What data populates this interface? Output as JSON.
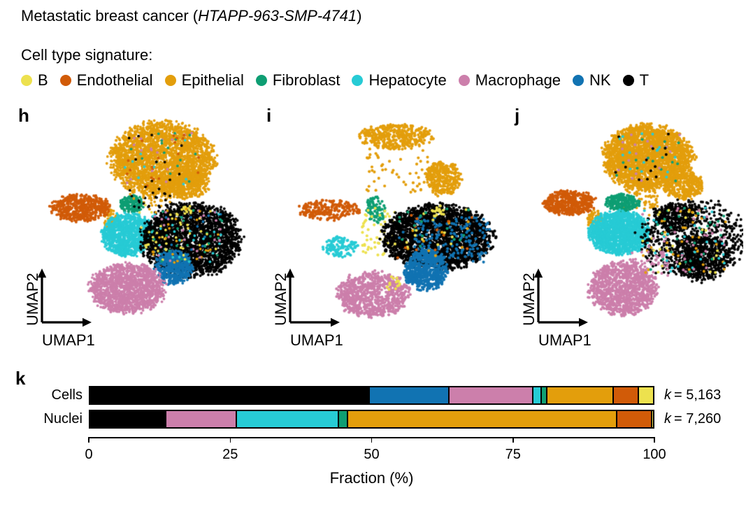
{
  "title": {
    "prefix": "Metastatic breast cancer (",
    "sample_id": "HTAPP-963-SMP-4741",
    "suffix": ")"
  },
  "legend": {
    "heading": "Cell type signature:",
    "items": [
      {
        "label": "B"
      },
      {
        "label": "Endothelial"
      },
      {
        "label": "Epithelial"
      },
      {
        "label": "Fibroblast"
      },
      {
        "label": "Hepatocyte"
      },
      {
        "label": "Macrophage"
      },
      {
        "label": "NK"
      },
      {
        "label": "T"
      }
    ]
  },
  "palette": {
    "B": "#EDE14E",
    "Endothelial": "#D15B08",
    "Epithelial": "#E39E0C",
    "Fibroblast": "#0E9E73",
    "Hepatocyte": "#27CBD5",
    "Macrophage": "#CC7FAB",
    "NK": "#1173B2",
    "T": "#000000"
  },
  "chart_data": [
    {
      "type": "scatter",
      "panel": "h",
      "xlabel": "UMAP1",
      "ylabel": "UMAP2",
      "seed": 42,
      "dot_radius_px": 1.9,
      "clusters": [
        {
          "cell_type": "Epithelial",
          "cx": 0.58,
          "cy": 0.21,
          "rx": 0.235,
          "ry": 0.175,
          "n": 2800,
          "mode": "disc"
        },
        {
          "cell_type": "Epithelial",
          "cx": 0.7,
          "cy": 0.33,
          "rx": 0.1,
          "ry": 0.07,
          "n": 350,
          "mode": "disc"
        },
        {
          "cell_type": "Epithelial",
          "cx": 0.335,
          "cy": 0.5,
          "rx": 0.03,
          "ry": 0.05,
          "n": 60,
          "mode": "disc"
        },
        {
          "mix": [
            "T",
            "Hepatocyte",
            "Fibroblast",
            "Macrophage",
            "Endothelial"
          ],
          "cx": 0.58,
          "cy": 0.21,
          "rx": 0.18,
          "ry": 0.13,
          "n": 70,
          "mode": "spread"
        },
        {
          "cell_type": "Endothelial",
          "cx": 0.19,
          "cy": 0.445,
          "rx": 0.135,
          "ry": 0.062,
          "n": 600,
          "mode": "disc"
        },
        {
          "cell_type": "Fibroblast",
          "cx": 0.43,
          "cy": 0.425,
          "rx": 0.058,
          "ry": 0.04,
          "n": 180,
          "mode": "disc"
        },
        {
          "cell_type": "Hepatocyte",
          "cx": 0.415,
          "cy": 0.575,
          "rx": 0.115,
          "ry": 0.1,
          "n": 1150,
          "mode": "disc"
        },
        {
          "cell_type": "T",
          "cx": 0.72,
          "cy": 0.6,
          "rx": 0.225,
          "ry": 0.17,
          "n": 2600,
          "mode": "disc"
        },
        {
          "cell_type": "NK",
          "cx": 0.635,
          "cy": 0.735,
          "rx": 0.088,
          "ry": 0.08,
          "n": 520,
          "mode": "disc"
        },
        {
          "cell_type": "Macrophage",
          "cx": 0.415,
          "cy": 0.835,
          "rx": 0.17,
          "ry": 0.115,
          "n": 1500,
          "mode": "disc"
        },
        {
          "mix": [
            "Epithelial",
            "T"
          ],
          "cx": 0.52,
          "cy": 0.4,
          "rx": 0.1,
          "ry": 0.06,
          "n": 50,
          "mode": "spread"
        },
        {
          "cell_type": "B",
          "cx": 0.697,
          "cy": 0.46,
          "rx": 0.03,
          "ry": 0.025,
          "n": 14,
          "mode": "disc"
        },
        {
          "cell_type": "B",
          "cx": 0.6,
          "cy": 0.55,
          "rx": 0.13,
          "ry": 0.12,
          "n": 26,
          "mode": "spread"
        },
        {
          "mix": [
            "Macrophage",
            "Epithelial",
            "Hepatocyte",
            "Fibroblast",
            "NK",
            "B"
          ],
          "cx": 0.7,
          "cy": 0.58,
          "rx": 0.17,
          "ry": 0.13,
          "n": 130,
          "mode": "spread"
        }
      ]
    },
    {
      "type": "scatter",
      "panel": "i",
      "xlabel": "UMAP1",
      "ylabel": "UMAP2",
      "seed": 7,
      "dot_radius_px": 2.1,
      "clusters": [
        {
          "cell_type": "Epithelial",
          "cx": 0.515,
          "cy": 0.1,
          "rx": 0.165,
          "ry": 0.058,
          "n": 380,
          "mode": "disc"
        },
        {
          "cell_type": "Epithelial",
          "cx": 0.735,
          "cy": 0.3,
          "rx": 0.085,
          "ry": 0.08,
          "n": 300,
          "mode": "disc"
        },
        {
          "cell_type": "Epithelial",
          "cx": 0.52,
          "cy": 0.24,
          "rx": 0.17,
          "ry": 0.13,
          "n": 60,
          "mode": "spread"
        },
        {
          "cell_type": "Endothelial",
          "cx": 0.19,
          "cy": 0.455,
          "rx": 0.145,
          "ry": 0.048,
          "n": 230,
          "mode": "disc"
        },
        {
          "cell_type": "Fibroblast",
          "cx": 0.415,
          "cy": 0.45,
          "rx": 0.045,
          "ry": 0.062,
          "n": 90,
          "mode": "disc"
        },
        {
          "cell_type": "B",
          "cx": 0.43,
          "cy": 0.56,
          "rx": 0.08,
          "ry": 0.12,
          "n": 55,
          "mode": "spread"
        },
        {
          "cell_type": "Hepatocyte",
          "cx": 0.25,
          "cy": 0.635,
          "rx": 0.08,
          "ry": 0.05,
          "n": 110,
          "mode": "disc"
        },
        {
          "cell_type": "T",
          "cx": 0.71,
          "cy": 0.585,
          "rx": 0.25,
          "ry": 0.15,
          "n": 2300,
          "mode": "disc"
        },
        {
          "cell_type": "NK",
          "cx": 0.655,
          "cy": 0.745,
          "rx": 0.1,
          "ry": 0.095,
          "n": 650,
          "mode": "disc"
        },
        {
          "cell_type": "NK",
          "cx": 0.78,
          "cy": 0.6,
          "rx": 0.18,
          "ry": 0.11,
          "n": 150,
          "mode": "spread"
        },
        {
          "cell_type": "B",
          "cx": 0.715,
          "cy": 0.465,
          "rx": 0.035,
          "ry": 0.03,
          "n": 16,
          "mode": "disc"
        },
        {
          "cell_type": "Macrophage",
          "cx": 0.4,
          "cy": 0.865,
          "rx": 0.165,
          "ry": 0.105,
          "n": 800,
          "mode": "disc"
        },
        {
          "cell_type": "B",
          "cx": 0.5,
          "cy": 0.81,
          "rx": 0.03,
          "ry": 0.05,
          "n": 14,
          "mode": "disc"
        },
        {
          "mix": [
            "B",
            "Epithelial",
            "Fibroblast",
            "NK",
            "Endothelial"
          ],
          "cx": 0.7,
          "cy": 0.57,
          "rx": 0.2,
          "ry": 0.12,
          "n": 60,
          "mode": "spread"
        }
      ]
    },
    {
      "type": "scatter",
      "panel": "j",
      "xlabel": "UMAP1",
      "ylabel": "UMAP2",
      "seed": 99,
      "dot_radius_px": 2.0,
      "clusters": [
        {
          "cell_type": "Epithelial",
          "cx": 0.555,
          "cy": 0.2,
          "rx": 0.2,
          "ry": 0.15,
          "n": 2400,
          "mode": "disc"
        },
        {
          "cell_type": "Epithelial",
          "cx": 0.72,
          "cy": 0.335,
          "rx": 0.09,
          "ry": 0.065,
          "n": 350,
          "mode": "disc"
        },
        {
          "cell_type": "Epithelial",
          "cx": 0.52,
          "cy": 0.38,
          "rx": 0.08,
          "ry": 0.07,
          "n": 80,
          "mode": "spread"
        },
        {
          "cell_type": "Epithelial",
          "cx": 0.305,
          "cy": 0.5,
          "rx": 0.035,
          "ry": 0.045,
          "n": 60,
          "mode": "disc"
        },
        {
          "mix": [
            "T",
            "Hepatocyte",
            "Macrophage",
            "Fibroblast"
          ],
          "cx": 0.555,
          "cy": 0.2,
          "rx": 0.16,
          "ry": 0.12,
          "n": 60,
          "mode": "spread"
        },
        {
          "cell_type": "Endothelial",
          "cx": 0.19,
          "cy": 0.42,
          "rx": 0.115,
          "ry": 0.057,
          "n": 500,
          "mode": "disc"
        },
        {
          "cell_type": "Fibroblast",
          "cx": 0.435,
          "cy": 0.42,
          "rx": 0.075,
          "ry": 0.04,
          "n": 230,
          "mode": "disc"
        },
        {
          "cell_type": "Hepatocyte",
          "cx": 0.42,
          "cy": 0.565,
          "rx": 0.135,
          "ry": 0.1,
          "n": 1500,
          "mode": "disc"
        },
        {
          "cell_type": "T",
          "cx": 0.76,
          "cy": 0.6,
          "rx": 0.24,
          "ry": 0.19,
          "n": 700,
          "mode": "disc"
        },
        {
          "cell_type": "T",
          "cx": 0.8,
          "cy": 0.68,
          "rx": 0.125,
          "ry": 0.105,
          "n": 550,
          "mode": "disc"
        },
        {
          "cell_type": "T",
          "cx": 0.685,
          "cy": 0.49,
          "rx": 0.095,
          "ry": 0.065,
          "n": 280,
          "mode": "disc"
        },
        {
          "cell_type": "Macrophage",
          "cx": 0.435,
          "cy": 0.835,
          "rx": 0.15,
          "ry": 0.125,
          "n": 1100,
          "mode": "disc"
        },
        {
          "cell_type": "Macrophage",
          "cx": 0.55,
          "cy": 0.72,
          "rx": 0.1,
          "ry": 0.06,
          "n": 40,
          "mode": "spread"
        },
        {
          "mix": [
            "Macrophage",
            "Hepatocyte",
            "Epithelial",
            "B",
            "Fibroblast"
          ],
          "cx": 0.72,
          "cy": 0.6,
          "rx": 0.2,
          "ry": 0.16,
          "n": 150,
          "mode": "spread"
        }
      ]
    },
    {
      "type": "bar",
      "panel": "k",
      "stacked": true,
      "orientation": "horizontal",
      "xlabel": "Fraction (%)",
      "xlim": [
        0,
        100
      ],
      "xticks": [
        "0",
        "25",
        "50",
        "75",
        "100"
      ],
      "rows": [
        {
          "label": "Cells",
          "k_symbol": "k",
          "count_text": "= 5,163",
          "segments": [
            {
              "cell_type": "T",
              "value": 49.6
            },
            {
              "cell_type": "NK",
              "value": 14.1
            },
            {
              "cell_type": "Macrophage",
              "value": 14.9
            },
            {
              "cell_type": "Hepatocyte",
              "value": 1.4
            },
            {
              "cell_type": "Fibroblast",
              "value": 1.0
            },
            {
              "cell_type": "Epithelial",
              "value": 11.8
            },
            {
              "cell_type": "Endothelial",
              "value": 4.5
            },
            {
              "cell_type": "B",
              "value": 2.7
            }
          ]
        },
        {
          "label": "Nuclei",
          "k_symbol": "k",
          "count_text": "= 7,260",
          "segments": [
            {
              "cell_type": "T",
              "value": 13.5
            },
            {
              "cell_type": "Macrophage",
              "value": 12.5
            },
            {
              "cell_type": "Hepatocyte",
              "value": 18.1
            },
            {
              "cell_type": "Fibroblast",
              "value": 1.6
            },
            {
              "cell_type": "Epithelial",
              "value": 47.7
            },
            {
              "cell_type": "Endothelial",
              "value": 6.2
            },
            {
              "cell_type": "B",
              "value": 0.4
            }
          ]
        }
      ]
    }
  ]
}
